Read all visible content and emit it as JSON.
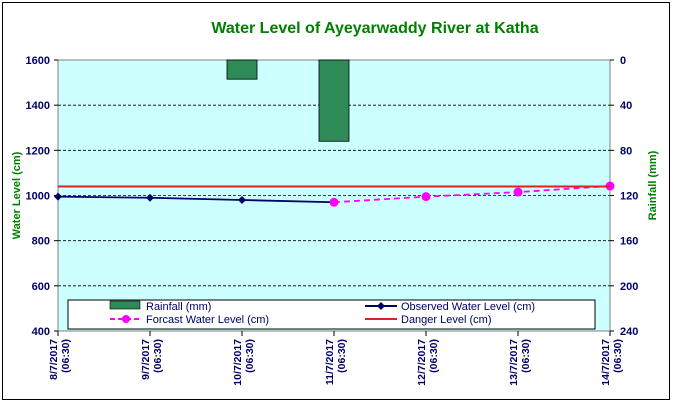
{
  "chart_data": {
    "type": "line",
    "title": "Water Level of Ayeyarwaddy River at Katha",
    "ylabel": "Water Level (cm)",
    "y2label": "Rainfall (mm)",
    "ylim": [
      400,
      1600
    ],
    "y2lim": [
      0,
      240
    ],
    "y2_inverted": true,
    "yticks": [
      400,
      600,
      800,
      1000,
      1200,
      1400,
      1600
    ],
    "y2ticks": [
      0,
      40,
      80,
      120,
      160,
      200,
      240
    ],
    "categories": [
      "8/7/2017 (06:30)",
      "9/7/2017 (06:30)",
      "10/7/2017 (06:30)",
      "11/7/2017 (06:30)",
      "12/7/2017 (06:30)",
      "13/7/2017 (06:30)",
      "14/7/2017 (06:30)"
    ],
    "grid": true,
    "legend": "bottom",
    "series": [
      {
        "name": "Rainfall (mm)",
        "type": "bar",
        "axis": "right",
        "color": "#2e8b57",
        "values": [
          0,
          0,
          17,
          72,
          null,
          null,
          null
        ]
      },
      {
        "name": "Observed Water Level (cm)",
        "type": "line",
        "color": "#000066",
        "values": [
          995,
          990,
          980,
          970,
          null,
          null,
          null
        ]
      },
      {
        "name": "Forcast Water Level (cm)",
        "type": "dashed-line",
        "color": "#ff00ff",
        "values": [
          null,
          null,
          null,
          970,
          995,
          1015,
          1042
        ]
      },
      {
        "name": "Danger Level (cm)",
        "type": "line",
        "color": "#e02020",
        "values": [
          1040,
          1040,
          1040,
          1040,
          1040,
          1040,
          1040
        ]
      }
    ]
  }
}
